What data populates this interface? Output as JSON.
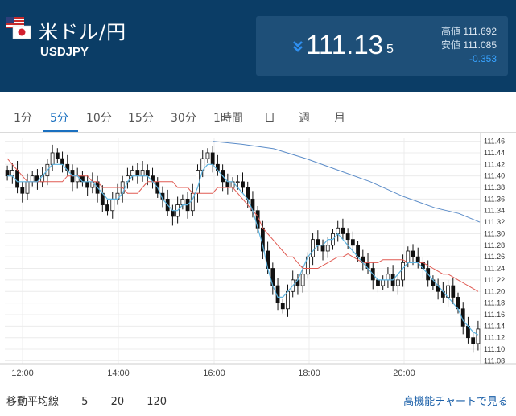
{
  "header": {
    "pair_title": "米ドル/円",
    "pair_code": "USDJPY",
    "price_main": "111.13",
    "price_small": "5",
    "high_label": "高値",
    "high_value": "111.692",
    "low_label": "安値",
    "low_value": "111.085",
    "change": "-0.353",
    "direction_icon": "double-chevron-down-icon",
    "flag_icon": "us-japan-flag-icon"
  },
  "tabs": [
    "1分",
    "5分",
    "10分",
    "15分",
    "30分",
    "1時間",
    "日",
    "週",
    "月"
  ],
  "active_tab": "5分",
  "legend": {
    "title": "移動平均線",
    "items": [
      {
        "label": "5",
        "color": "#5fb4e0"
      },
      {
        "label": "20",
        "color": "#e05a52"
      },
      {
        "label": "120",
        "color": "#5b8cc8"
      }
    ]
  },
  "more_link": "高機能チャートで見る",
  "colors": {
    "header_bg": "#0b3d66",
    "price_box": "#1e4f78",
    "accent": "#1a70c0",
    "change": "#38a3ff"
  },
  "chart_data": {
    "type": "candlestick",
    "x_ticks": [
      "12:00",
      "14:00",
      "16:00",
      "18:00",
      "20:00"
    ],
    "y_ticks": [
      "111.46",
      "111.44",
      "111.42",
      "111.40",
      "111.38",
      "111.36",
      "111.34",
      "111.32",
      "111.30",
      "111.28",
      "111.26",
      "111.24",
      "111.22",
      "111.20",
      "111.18",
      "111.16",
      "111.14",
      "111.12",
      "111.10",
      "111.08"
    ],
    "ylim": [
      111.075,
      111.465
    ],
    "grid": true,
    "candles_close": [
      111.4,
      111.41,
      111.38,
      111.37,
      111.39,
      111.4,
      111.39,
      111.4,
      111.42,
      111.44,
      111.43,
      111.42,
      111.41,
      111.39,
      111.4,
      111.39,
      111.38,
      111.39,
      111.37,
      111.35,
      111.34,
      111.36,
      111.37,
      111.39,
      111.4,
      111.41,
      111.4,
      111.41,
      111.4,
      111.39,
      111.37,
      111.36,
      111.34,
      111.33,
      111.35,
      111.36,
      111.34,
      111.37,
      111.41,
      111.43,
      111.44,
      111.42,
      111.41,
      111.39,
      111.38,
      111.39,
      111.39,
      111.38,
      111.36,
      111.34,
      111.31,
      111.27,
      111.24,
      111.21,
      111.18,
      111.17,
      111.2,
      111.22,
      111.21,
      111.23,
      111.26,
      111.29,
      111.28,
      111.27,
      111.28,
      111.3,
      111.31,
      111.3,
      111.29,
      111.28,
      111.26,
      111.25,
      111.24,
      111.22,
      111.21,
      111.22,
      111.23,
      111.21,
      111.22,
      111.25,
      111.27,
      111.26,
      111.25,
      111.24,
      111.22,
      111.21,
      111.2,
      111.19,
      111.21,
      111.19,
      111.17,
      111.14,
      111.12,
      111.11,
      111.135
    ],
    "ma5": [
      111.4,
      111.4,
      111.39,
      111.39,
      111.39,
      111.39,
      111.39,
      111.4,
      111.41,
      111.42,
      111.42,
      111.42,
      111.41,
      111.4,
      111.4,
      111.39,
      111.39,
      111.39,
      111.38,
      111.37,
      111.36,
      111.36,
      111.36,
      111.37,
      111.39,
      111.4,
      111.4,
      111.4,
      111.4,
      111.39,
      111.38,
      111.36,
      111.35,
      111.34,
      111.34,
      111.35,
      111.35,
      111.36,
      111.38,
      111.41,
      111.42,
      111.42,
      111.41,
      111.4,
      111.39,
      111.39,
      111.38,
      111.37,
      111.36,
      111.34,
      111.31,
      111.28,
      111.24,
      111.21,
      111.19,
      111.19,
      111.2,
      111.21,
      111.22,
      111.24,
      111.26,
      111.27,
      111.28,
      111.28,
      111.29,
      111.29,
      111.3,
      111.29,
      111.28,
      111.27,
      111.26,
      111.25,
      111.24,
      111.23,
      111.22,
      111.22,
      111.22,
      111.22,
      111.23,
      111.24,
      111.25,
      111.25,
      111.25,
      111.24,
      111.23,
      111.22,
      111.21,
      111.2,
      111.19,
      111.18,
      111.17,
      111.15,
      111.14,
      111.13,
      111.125
    ],
    "ma20": [
      111.43,
      111.42,
      111.41,
      111.4,
      111.39,
      111.39,
      111.39,
      111.39,
      111.39,
      111.39,
      111.39,
      111.39,
      111.4,
      111.4,
      111.4,
      111.4,
      111.4,
      111.39,
      111.39,
      111.38,
      111.38,
      111.38,
      111.38,
      111.38,
      111.37,
      111.37,
      111.37,
      111.38,
      111.39,
      111.39,
      111.39,
      111.39,
      111.39,
      111.39,
      111.38,
      111.38,
      111.38,
      111.37,
      111.37,
      111.37,
      111.37,
      111.37,
      111.38,
      111.38,
      111.38,
      111.38,
      111.37,
      111.36,
      111.35,
      111.34,
      111.33,
      111.31,
      111.3,
      111.29,
      111.28,
      111.27,
      111.26,
      111.26,
      111.25,
      111.24,
      111.24,
      111.24,
      111.24,
      111.245,
      111.25,
      111.255,
      111.26,
      111.26,
      111.265,
      111.26,
      111.255,
      111.25,
      111.25,
      111.25,
      111.25,
      111.255,
      111.255,
      111.255,
      111.255,
      111.255,
      111.25,
      111.25,
      111.25,
      111.25,
      111.245,
      111.24,
      111.235,
      111.23,
      111.23,
      111.225,
      111.22,
      111.215,
      111.21,
      111.205,
      111.2
    ],
    "ma120": [
      [
        264,
        111.46
      ],
      [
        300,
        111.455
      ],
      [
        340,
        111.447
      ],
      [
        380,
        111.43
      ],
      [
        420,
        111.41
      ],
      [
        460,
        111.39
      ],
      [
        500,
        111.365
      ],
      [
        540,
        111.345
      ],
      [
        570,
        111.335
      ],
      [
        596,
        111.32
      ]
    ]
  }
}
